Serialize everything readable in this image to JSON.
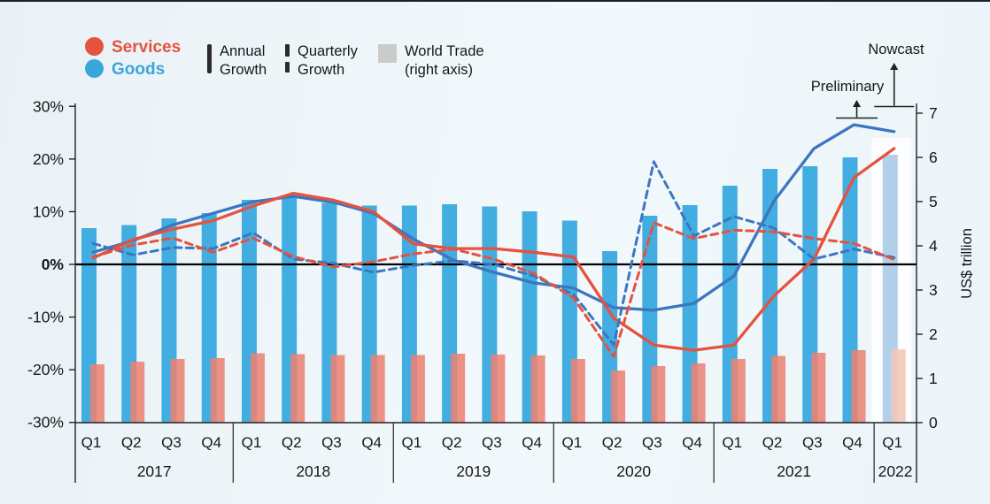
{
  "legend": {
    "services_label": "Services",
    "goods_label": "Goods",
    "annual_line1": "Annual",
    "annual_line2": "Growth",
    "quarterly_line1": "Quarterly",
    "quarterly_line2": "Growth",
    "world_line1": "World Trade",
    "world_line2": "(right axis)"
  },
  "annotations": {
    "preliminary": "Preliminary",
    "nowcast": "Nowcast"
  },
  "colors": {
    "services_accent": "#e5533f",
    "goods_accent": "#3aa7db",
    "bar_goods": "#42ade0",
    "bar_goods_nowcast": "#b3d0ea",
    "bar_services": "#ec8273",
    "bar_services_nowcast": "#f3c7b8",
    "line_goods": "#3c76c1",
    "line_services": "#e6523e",
    "axis_text": "#17181a",
    "background": "#eef5f9"
  },
  "chart_data": {
    "type": "combo: bar (trade value, right axis) + line (growth %, left axis)",
    "x_quarters": [
      "Q1",
      "Q2",
      "Q3",
      "Q4",
      "Q1",
      "Q2",
      "Q3",
      "Q4",
      "Q1",
      "Q2",
      "Q3",
      "Q4",
      "Q1",
      "Q2",
      "Q3",
      "Q4",
      "Q1",
      "Q2",
      "Q3",
      "Q4",
      "Q1"
    ],
    "years": [
      {
        "label": "2017",
        "quarters": 4
      },
      {
        "label": "2018",
        "quarters": 4
      },
      {
        "label": "2019",
        "quarters": 4
      },
      {
        "label": "2020",
        "quarters": 4
      },
      {
        "label": "2021",
        "quarters": 4
      },
      {
        "label": "2022",
        "quarters": 1
      }
    ],
    "left_axis": {
      "unit": "percent",
      "tick_labels": [
        "30%",
        "20%",
        "10%",
        "0%",
        "-10%",
        "-20%",
        "-30%"
      ],
      "tick_values": [
        30,
        20,
        10,
        0,
        -10,
        -20,
        -30
      ],
      "range": [
        -30,
        30
      ],
      "bold_tick": "0%"
    },
    "right_axis": {
      "title": "US$ trillion",
      "tick_values": [
        7,
        6,
        5,
        4,
        3,
        2,
        1,
        0
      ],
      "range": [
        0,
        7
      ]
    },
    "nowcast_quarter_index": 20,
    "preliminary_quarter_index": 19,
    "grid": false,
    "legend_position": "top-left",
    "series": [
      {
        "name": "Goods world trade value",
        "kind": "bar",
        "axis": "right",
        "color": "#42ade0",
        "nowcast_color": "#b3d0ea",
        "values": [
          4.4,
          4.47,
          4.62,
          4.74,
          5.04,
          5.12,
          4.97,
          4.91,
          4.91,
          4.94,
          4.89,
          4.78,
          4.57,
          3.88,
          4.68,
          4.92,
          5.36,
          5.74,
          5.8,
          6.0,
          6.06
        ]
      },
      {
        "name": "Services world trade value",
        "kind": "bar",
        "axis": "right",
        "color": "#ec8273",
        "nowcast_color": "#f3c7b8",
        "values": [
          1.32,
          1.38,
          1.44,
          1.46,
          1.57,
          1.55,
          1.53,
          1.53,
          1.53,
          1.56,
          1.54,
          1.52,
          1.44,
          1.18,
          1.28,
          1.34,
          1.44,
          1.51,
          1.58,
          1.64,
          1.66
        ]
      },
      {
        "name": "Goods annual growth",
        "kind": "line",
        "dash": "solid",
        "axis": "left",
        "color": "#3c76c1",
        "values": [
          2.3,
          4.5,
          7.5,
          9.7,
          11.9,
          12.9,
          11.8,
          9.7,
          4.8,
          0.8,
          -1.5,
          -3.5,
          -4.5,
          -8.2,
          -8.7,
          -7.4,
          -2.2,
          12.0,
          22.0,
          26.5,
          25.2
        ]
      },
      {
        "name": "Services annual growth",
        "kind": "line",
        "dash": "solid",
        "axis": "left",
        "color": "#e6523e",
        "values": [
          1.2,
          4.7,
          6.7,
          8.3,
          11.1,
          13.5,
          12.2,
          10.0,
          3.9,
          3.0,
          3.0,
          2.3,
          1.4,
          -10.2,
          -15.3,
          -16.3,
          -15.3,
          -6.0,
          1.0,
          16.5,
          22.0
        ]
      },
      {
        "name": "Goods quarterly growth",
        "kind": "line",
        "dash": "dashed",
        "axis": "left",
        "color": "#3c76c1",
        "values": [
          4.0,
          1.8,
          3.2,
          3.0,
          6.0,
          1.0,
          0.2,
          -1.5,
          -0.2,
          0.7,
          0.0,
          -2.2,
          -5.7,
          -15.3,
          19.5,
          5.4,
          9.1,
          6.9,
          1.0,
          2.9,
          1.3
        ]
      },
      {
        "name": "Services quarterly growth",
        "kind": "line",
        "dash": "dashed",
        "axis": "left",
        "color": "#e6523e",
        "values": [
          1.4,
          3.7,
          5.0,
          2.3,
          5.0,
          1.5,
          -0.5,
          0.5,
          2.0,
          2.9,
          1.0,
          -1.7,
          -6.4,
          -17.5,
          7.9,
          4.9,
          6.5,
          6.2,
          4.9,
          4.0,
          0.9
        ]
      }
    ]
  }
}
